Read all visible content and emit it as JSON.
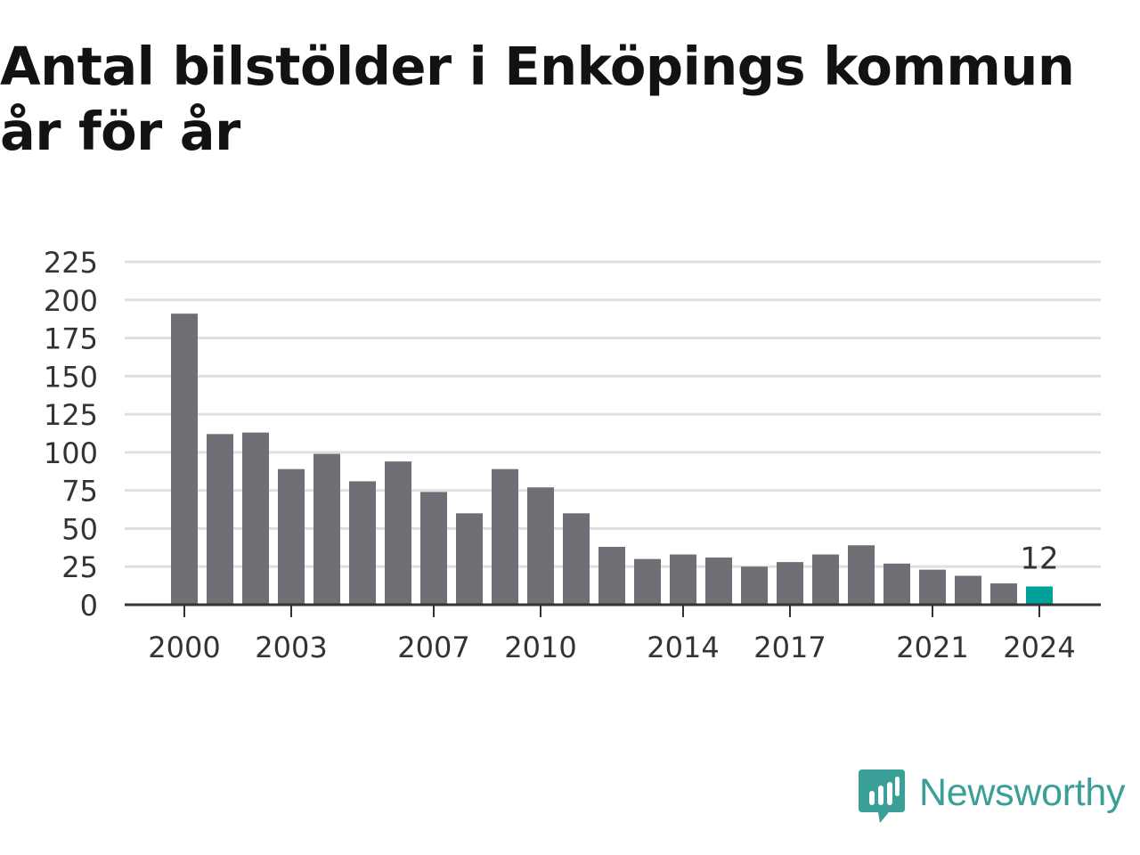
{
  "chart_data": {
    "type": "bar",
    "title": "Antal bilstölder i Enköpings kommun år för år",
    "xlabel": "",
    "ylabel": "",
    "categories": [
      "2000",
      "2001",
      "2002",
      "2003",
      "2004",
      "2005",
      "2006",
      "2007",
      "2008",
      "2009",
      "2010",
      "2011",
      "2012",
      "2013",
      "2014",
      "2015",
      "2016",
      "2017",
      "2018",
      "2019",
      "2020",
      "2021",
      "2022",
      "2023",
      "2024"
    ],
    "values": [
      191,
      112,
      113,
      89,
      99,
      81,
      94,
      74,
      60,
      89,
      77,
      60,
      38,
      30,
      33,
      31,
      25,
      28,
      33,
      39,
      27,
      23,
      19,
      14,
      12
    ],
    "ylim": [
      0,
      225
    ],
    "yticks": [
      0,
      25,
      50,
      75,
      100,
      125,
      150,
      175,
      200,
      225
    ],
    "xtick_labels": [
      "2000",
      "2003",
      "2007",
      "2010",
      "2014",
      "2017",
      "2021",
      "2024"
    ],
    "annotations": [
      {
        "category": "2024",
        "label": "12"
      }
    ],
    "colors": {
      "bar": "#706f75",
      "highlight": "#00a19a",
      "grid": "#e0e0e0",
      "axis": "#333333"
    },
    "grid": true,
    "legend": "none"
  },
  "brand": {
    "name": "Newsworthy",
    "icon": "newsworthy-logo-icon",
    "color": "#3a9f96"
  }
}
